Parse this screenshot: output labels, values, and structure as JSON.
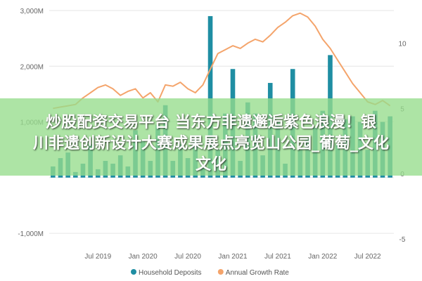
{
  "chart_data": {
    "type": "bar",
    "title": "",
    "xlabel": "",
    "ylabel": "",
    "x_tick_labels": [
      "Jul 2019",
      "Jan 2020",
      "Jul 2020",
      "Jan 2021",
      "Jul 2021",
      "Jan 2022",
      "Jul 2022"
    ],
    "y_left": {
      "ylim": [
        -1100,
        3000
      ],
      "ticks": [
        -1000,
        0,
        1000,
        2000,
        3000
      ],
      "tick_labels": [
        "-1,000M",
        "",
        "1,000M",
        "2,000M",
        "3,000M"
      ]
    },
    "y_right": {
      "ylim": [
        -5,
        12.5
      ],
      "ticks": [
        -5,
        0,
        5,
        10
      ],
      "tick_labels": [
        "-5",
        "0",
        "5",
        "10"
      ]
    },
    "months": [
      "2019-01",
      "2019-02",
      "2019-03",
      "2019-04",
      "2019-05",
      "2019-06",
      "2019-07",
      "2019-08",
      "2019-09",
      "2019-10",
      "2019-11",
      "2019-12",
      "2020-01",
      "2020-02",
      "2020-03",
      "2020-04",
      "2020-05",
      "2020-06",
      "2020-07",
      "2020-08",
      "2020-09",
      "2020-10",
      "2020-11",
      "2020-12",
      "2021-01",
      "2021-02",
      "2021-03",
      "2021-04",
      "2021-05",
      "2021-06",
      "2021-07",
      "2021-08",
      "2021-09",
      "2021-10",
      "2021-11",
      "2021-12",
      "2022-01",
      "2022-02",
      "2022-03",
      "2022-04",
      "2022-05",
      "2022-06",
      "2022-07",
      "2022-08",
      "2022-09",
      "2022-10"
    ],
    "series": [
      {
        "name": "Household Deposits",
        "type": "bar",
        "axis": "left",
        "color": "#1f8ea3",
        "values": [
          200,
          350,
          450,
          100,
          250,
          600,
          150,
          300,
          250,
          400,
          200,
          850,
          650,
          300,
          950,
          1300,
          300,
          600,
          350,
          700,
          200,
          2900,
          500,
          1150,
          1950,
          300,
          1350,
          1150,
          400,
          1700,
          1000,
          250,
          1950,
          500,
          700,
          900,
          1200,
          2200,
          600,
          1050,
          1100,
          1000,
          500,
          1200,
          1000,
          1100
        ]
      },
      {
        "name": "Annual Growth Rate",
        "type": "line",
        "axis": "right",
        "color": "#f4a46b",
        "values": [
          5.0,
          5.1,
          5.2,
          5.3,
          5.8,
          6.2,
          6.6,
          6.8,
          6.5,
          6.0,
          6.3,
          6.5,
          5.8,
          6.2,
          5.5,
          6.8,
          6.7,
          7.0,
          6.5,
          6.2,
          6.8,
          8.0,
          9.2,
          9.5,
          9.8,
          9.6,
          10.0,
          10.3,
          10.1,
          10.6,
          11.2,
          11.6,
          12.1,
          12.3,
          12.0,
          11.3,
          10.3,
          9.6,
          8.7,
          7.8,
          6.9,
          6.2,
          5.5,
          5.3,
          5.6,
          5.2
        ]
      }
    ],
    "legend": {
      "placement": "bottom"
    }
  },
  "overlay": {
    "line1": "炒股配资交易平台 当东方非遗邂逅紫色浪漫！银",
    "line2": "川非遗创新设计大赛成果展点亮览山公园_葡萄_文化",
    "line3": "文化"
  }
}
